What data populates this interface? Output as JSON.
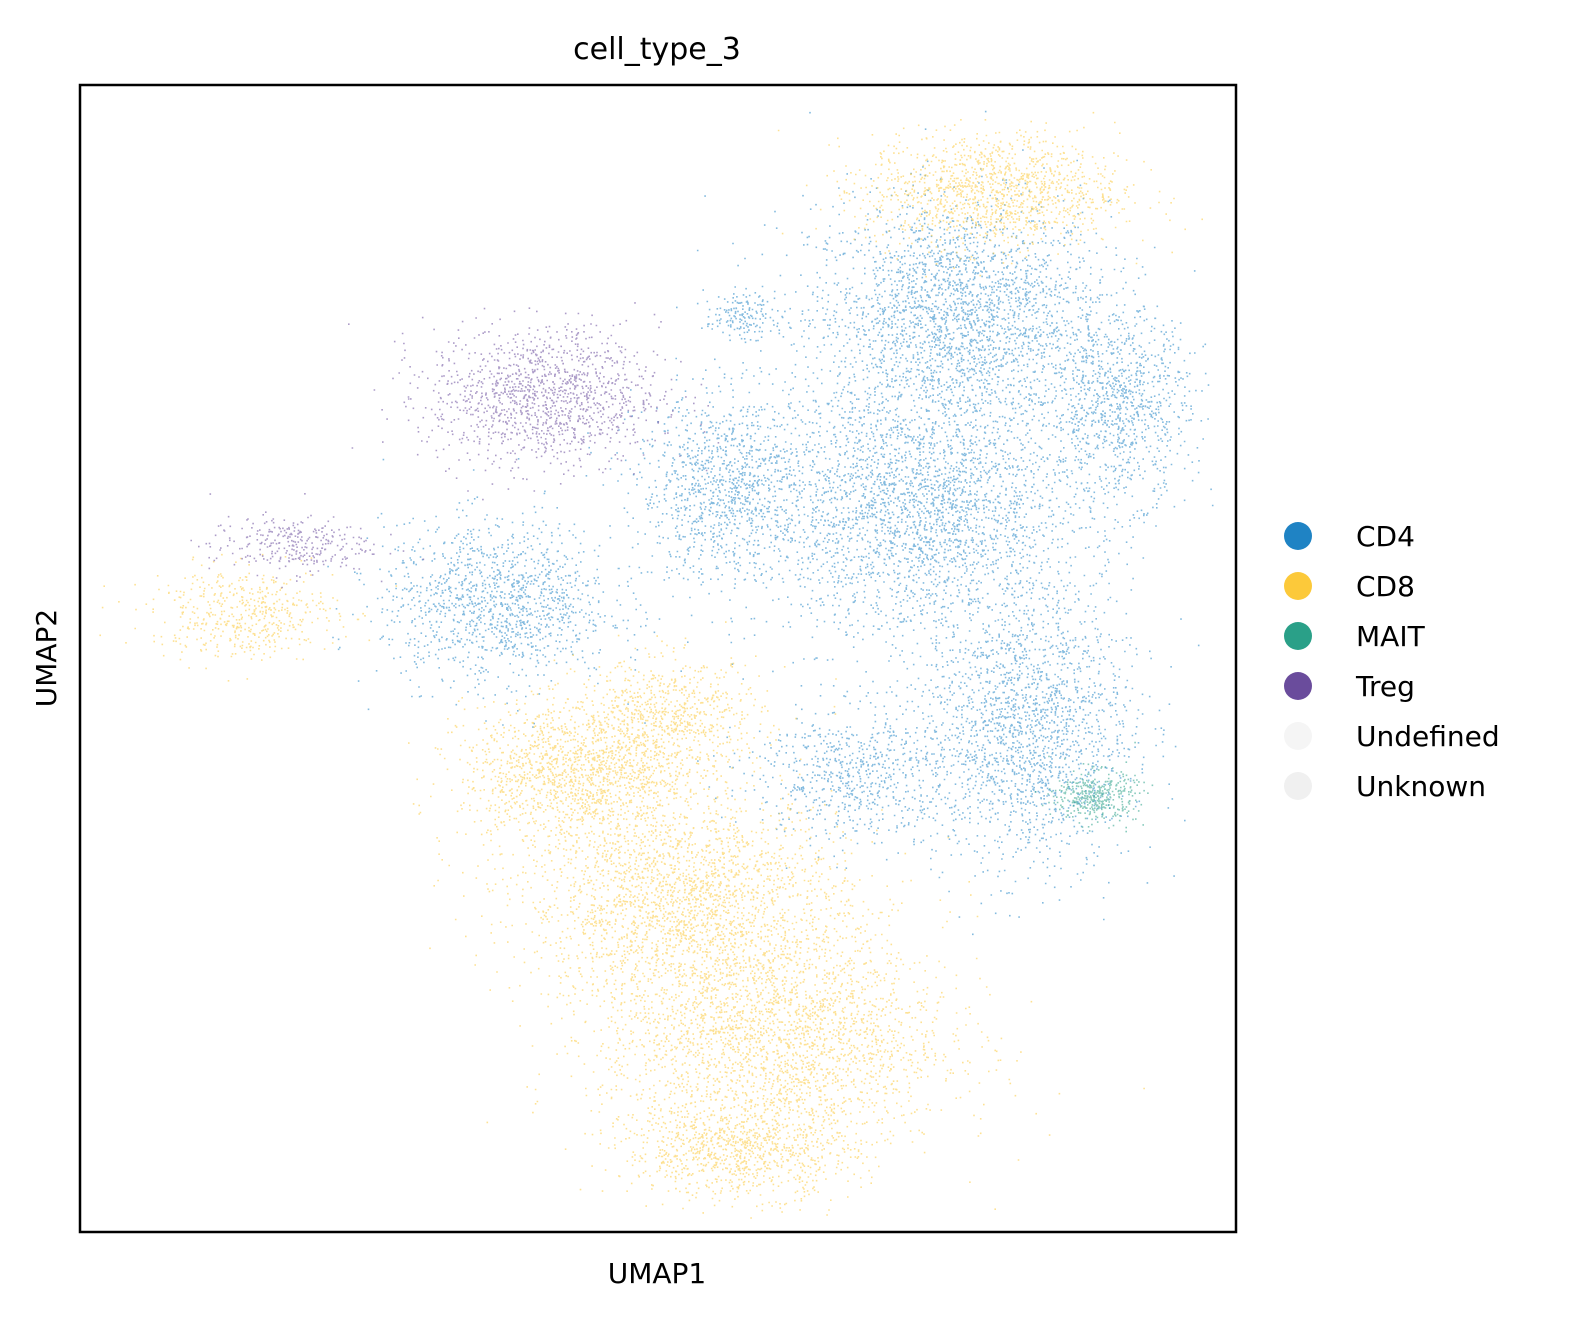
{
  "chart_data": {
    "type": "scatter",
    "title": "cell_type_3",
    "xlabel": "UMAP1",
    "ylabel": "UMAP2",
    "ticks": false,
    "grid": false,
    "legend_placement": "right",
    "xlim": [
      0,
      100
    ],
    "ylim": [
      0,
      100
    ],
    "series": [
      {
        "name": "CD4",
        "color": "#1f83c4",
        "clusters": [
          {
            "cx": 76,
            "cy": 80,
            "rx": 13,
            "ry": 10,
            "n": 2600
          },
          {
            "cx": 73,
            "cy": 63,
            "rx": 14,
            "ry": 11,
            "n": 2800
          },
          {
            "cx": 82,
            "cy": 44,
            "rx": 9,
            "ry": 12,
            "n": 1900
          },
          {
            "cx": 36,
            "cy": 55,
            "rx": 10,
            "ry": 7,
            "n": 1300
          },
          {
            "cx": 90,
            "cy": 72,
            "rx": 6,
            "ry": 8,
            "n": 900
          },
          {
            "cx": 56,
            "cy": 65,
            "rx": 8,
            "ry": 8,
            "n": 1100
          },
          {
            "cx": 67,
            "cy": 40,
            "rx": 9,
            "ry": 6,
            "n": 700
          },
          {
            "cx": 57,
            "cy": 80,
            "rx": 3,
            "ry": 2,
            "n": 150
          }
        ]
      },
      {
        "name": "CD8",
        "color": "#fcc93a",
        "clusters": [
          {
            "cx": 79,
            "cy": 91,
            "rx": 11,
            "ry": 5,
            "n": 1300
          },
          {
            "cx": 43,
            "cy": 40,
            "rx": 10,
            "ry": 6,
            "n": 1500
          },
          {
            "cx": 52,
            "cy": 29,
            "rx": 14,
            "ry": 9,
            "n": 2300
          },
          {
            "cx": 60,
            "cy": 17,
            "rx": 15,
            "ry": 10,
            "n": 2600
          },
          {
            "cx": 57,
            "cy": 7,
            "rx": 10,
            "ry": 4,
            "n": 900
          },
          {
            "cx": 51,
            "cy": 45,
            "rx": 8,
            "ry": 5,
            "n": 700
          },
          {
            "cx": 14,
            "cy": 54,
            "rx": 8,
            "ry": 4,
            "n": 500
          }
        ]
      },
      {
        "name": "MAIT",
        "color": "#2aa088",
        "clusters": [
          {
            "cx": 88,
            "cy": 38,
            "rx": 3.5,
            "ry": 2.2,
            "n": 400
          }
        ]
      },
      {
        "name": "Treg",
        "color": "#6a4c9c",
        "clusters": [
          {
            "cx": 40,
            "cy": 73,
            "rx": 10,
            "ry": 6,
            "n": 1300
          },
          {
            "cx": 18,
            "cy": 60,
            "rx": 7,
            "ry": 2.5,
            "n": 300
          }
        ]
      },
      {
        "name": "Undefined",
        "color": "#f5f5f5",
        "clusters": []
      },
      {
        "name": "Unknown",
        "color": "#f0f0f0",
        "clusters": []
      }
    ]
  }
}
